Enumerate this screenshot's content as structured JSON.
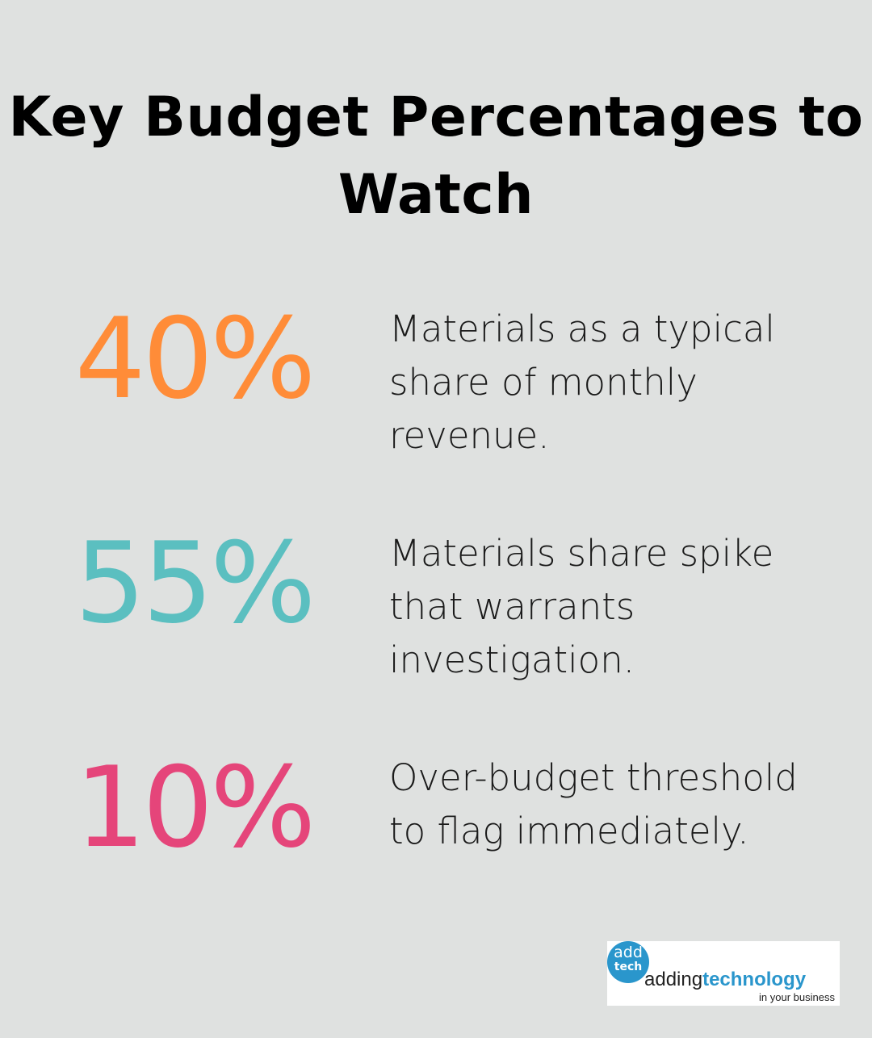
{
  "title": "Key Budget Percentages to Watch",
  "stats": [
    {
      "value": "40%",
      "description": "Materials as a typical share of monthly revenue.",
      "color": "#ff8c38"
    },
    {
      "value": "55%",
      "description": "Materials share spike that warrants investigation.",
      "color": "#5bbfc0"
    },
    {
      "value": "10%",
      "description": "Over-budget threshold to flag immediately.",
      "color": "#e5457a"
    }
  ],
  "logo": {
    "badge_top": "add",
    "badge_bottom": "tech",
    "word_a": "adding",
    "word_b": "technology",
    "tagline": "in your business",
    "brand_color": "#2a96cc"
  }
}
